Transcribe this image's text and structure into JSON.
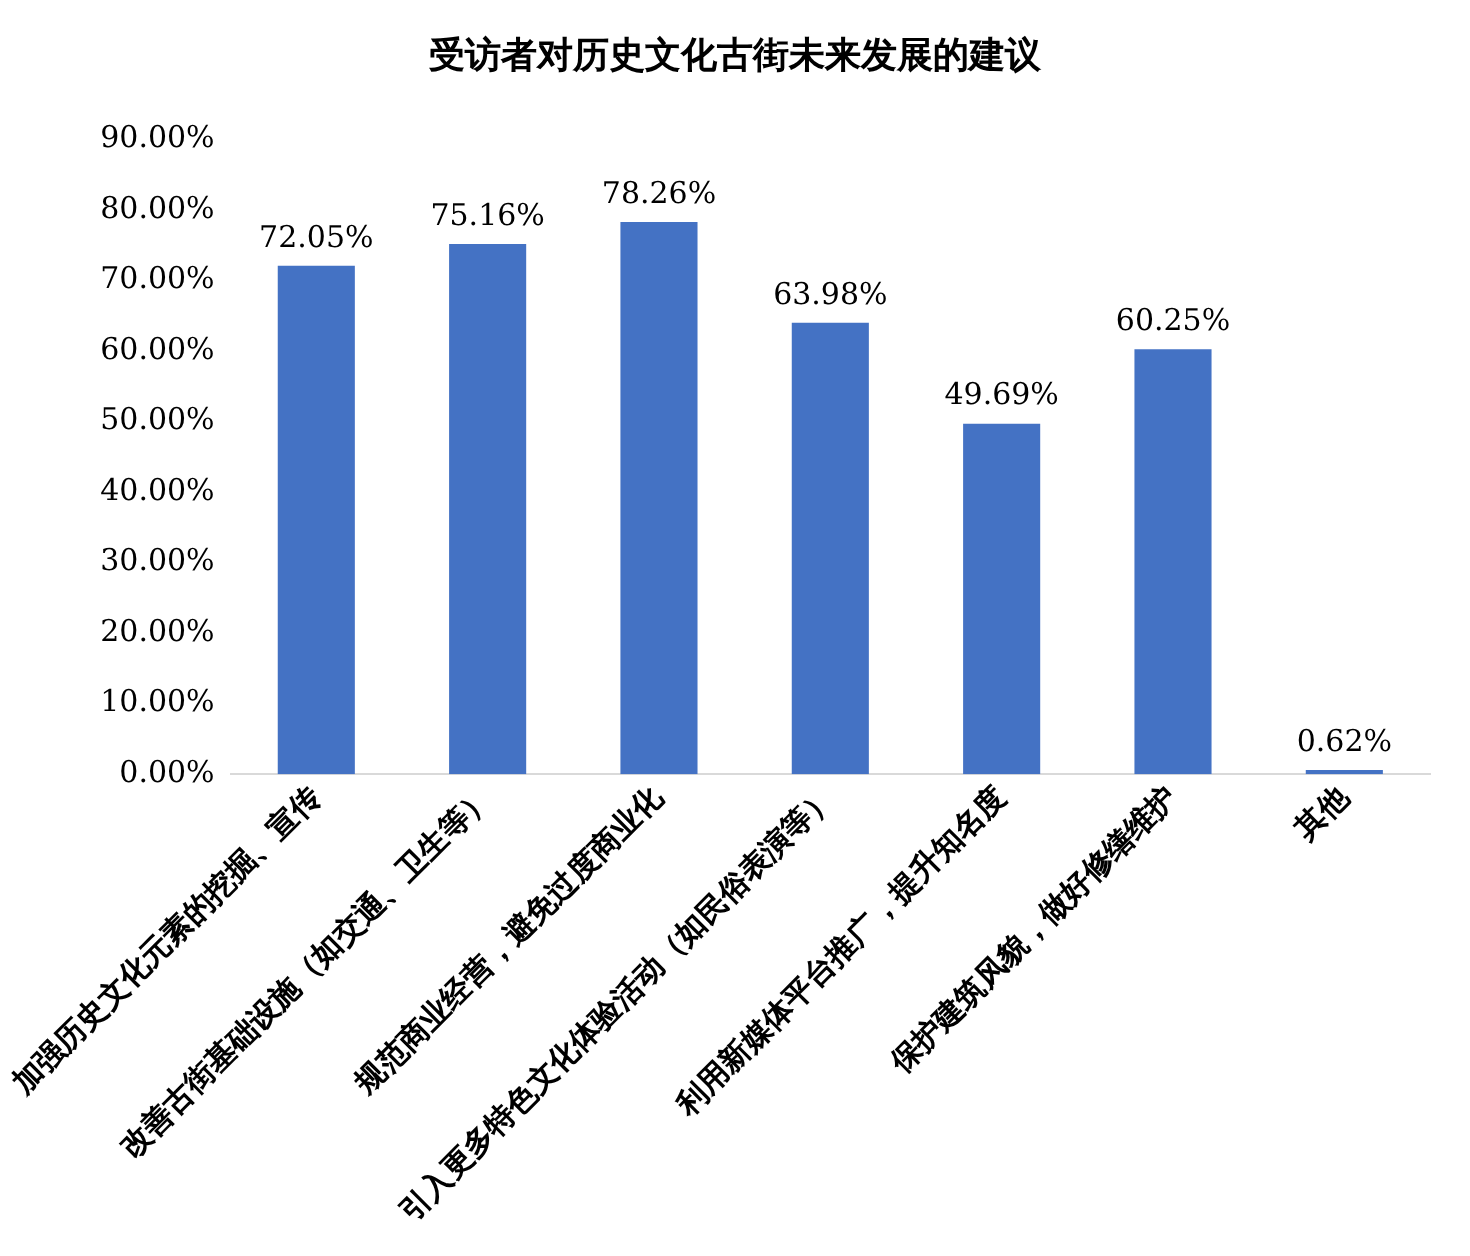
{
  "chart_data": {
    "type": "bar",
    "title": "受访者对历史文化古街未来发展的建议",
    "categories": [
      "加强历史文化元素的挖掘、宣传",
      "改善古街基础设施（如交通、卫生等）",
      "规范商业经营，避免过度商业化",
      "引入更多特色文化体验活动（如民俗表演等）",
      "利用新媒体平台推广，提升知名度",
      "保护建筑风貌，做好修缮维护",
      "其他"
    ],
    "values": [
      72.05,
      75.16,
      78.26,
      63.98,
      49.69,
      60.25,
      0.62
    ],
    "value_labels": [
      "72.05%",
      "75.16%",
      "78.26%",
      "63.98%",
      "49.69%",
      "60.25%",
      "0.62%"
    ],
    "color": "#4472c4",
    "ylim": [
      0,
      90
    ],
    "yticks": [
      {
        "value": 0,
        "label": "0.00%"
      },
      {
        "value": 10,
        "label": "10.00%"
      },
      {
        "value": 20,
        "label": "20.00%"
      },
      {
        "value": 30,
        "label": "30.00%"
      },
      {
        "value": 40,
        "label": "40.00%"
      },
      {
        "value": 50,
        "label": "50.00%"
      },
      {
        "value": 60,
        "label": "60.00%"
      },
      {
        "value": 70,
        "label": "70.00%"
      },
      {
        "value": 80,
        "label": "80.00%"
      },
      {
        "value": 90,
        "label": "90.00%"
      }
    ],
    "grid": false,
    "legend": false
  }
}
